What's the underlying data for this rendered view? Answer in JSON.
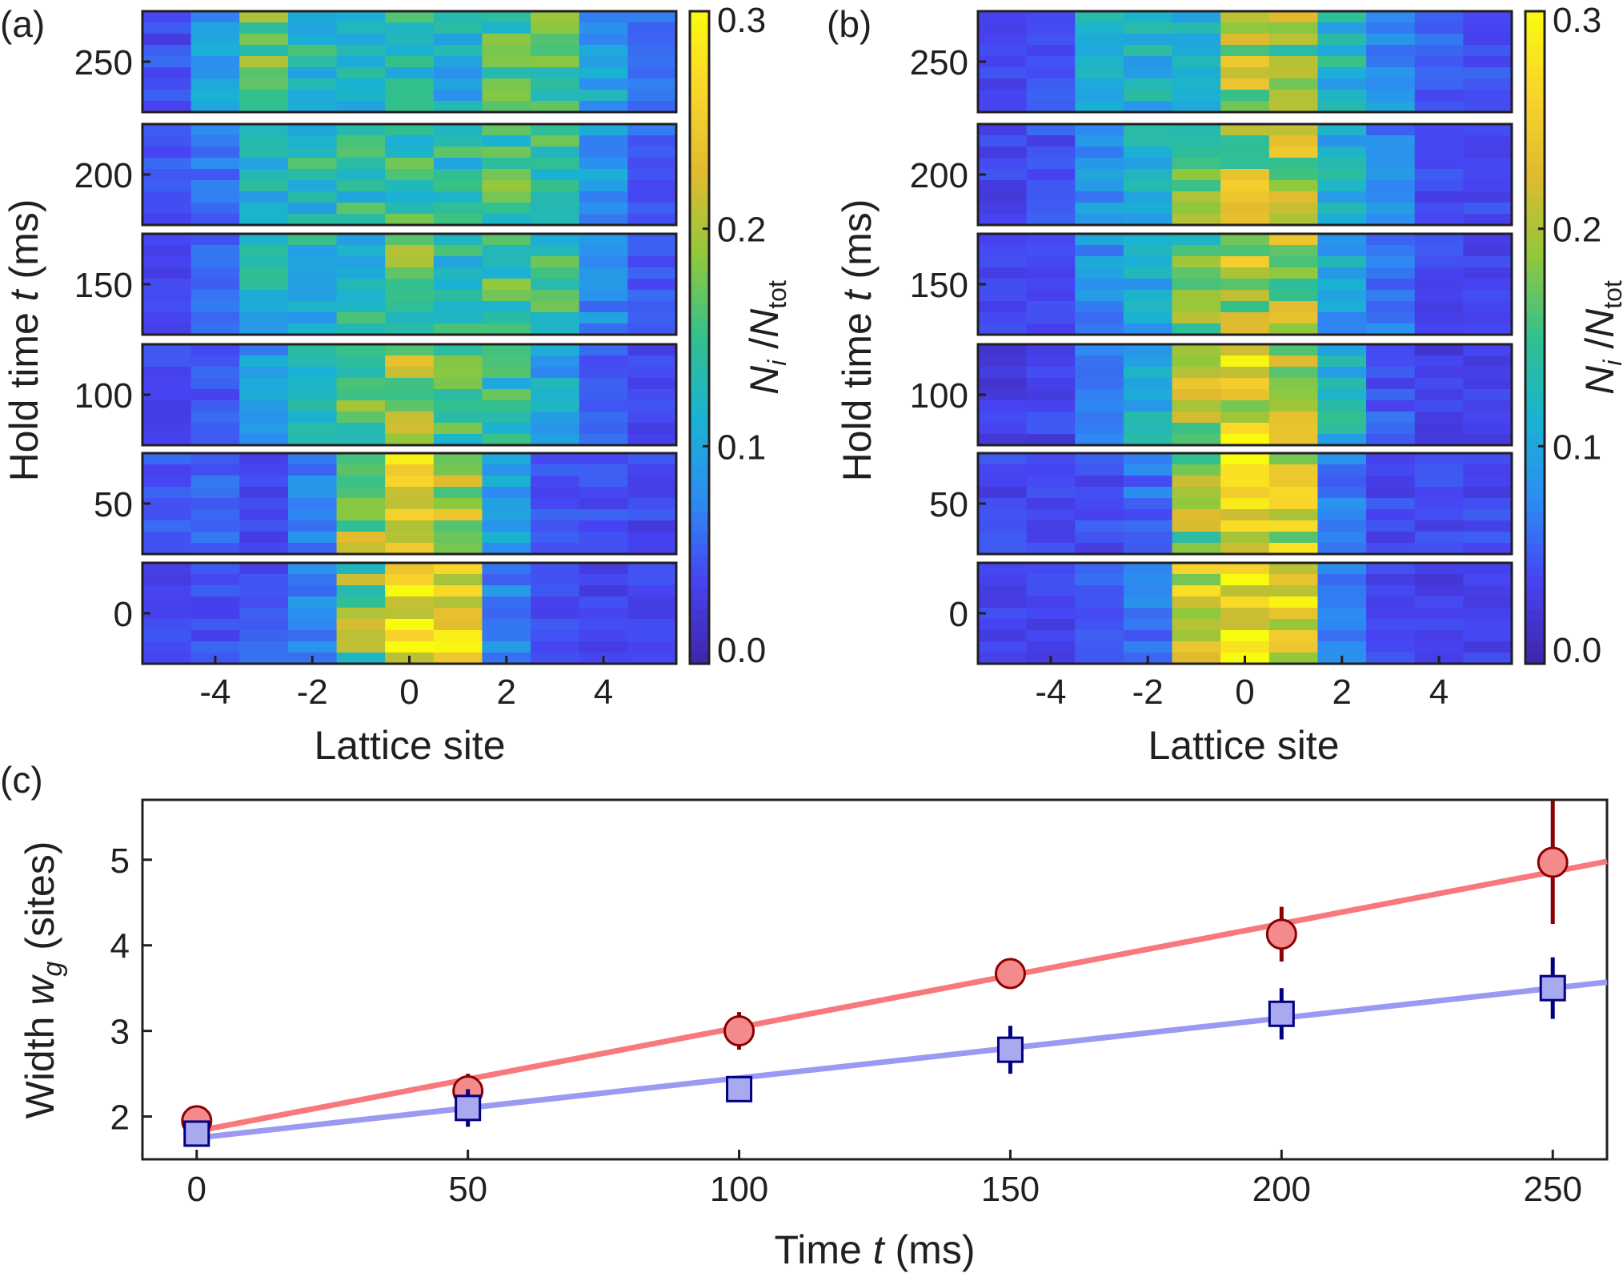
{
  "colors": {
    "frame": "#231f20",
    "red_line": "#f8797b",
    "red_marker_fill": "#f38b8c",
    "red_marker_edge": "#8b0000",
    "blue_line": "#9a9af2",
    "blue_marker_fill": "#a9a9f0",
    "blue_marker_edge": "#000080",
    "colormap": [
      "#3e26a8",
      "#4743f2",
      "#2d8cf2",
      "#1ab2d3",
      "#32c08d",
      "#90c83c",
      "#e0ba2f",
      "#f9d42b",
      "#f9fb0e"
    ]
  },
  "chart_data": [
    {
      "type": "heatmap",
      "panel_label": "(a)",
      "xlabel": "Lattice site",
      "ylabel_prefix": "Hold time",
      "ylabel_var": "t",
      "ylabel_unit": "(ms)",
      "x_ticks": [
        "-4",
        "-2",
        "0",
        "2",
        "4"
      ],
      "y_ticks": [
        "250",
        "200",
        "150",
        "100",
        "50",
        "0"
      ],
      "colorbar": {
        "label_num": "N",
        "label_num_sub": "i",
        "label_den": "N",
        "label_den_sub": "tot",
        "ticks": [
          "0.3",
          "0.2",
          "0.1",
          "0.0"
        ],
        "range": [
          0,
          0.3
        ]
      },
      "sites": [
        -5,
        -4,
        -3,
        -2,
        -1,
        0,
        1,
        2,
        3,
        4,
        5
      ],
      "hold_times": [
        250,
        200,
        150,
        100,
        50,
        0
      ],
      "profiles": [
        [
          0.045,
          0.085,
          0.16,
          0.13,
          0.11,
          0.14,
          0.11,
          0.15,
          0.16,
          0.095,
          0.055
        ],
        [
          0.045,
          0.065,
          0.12,
          0.13,
          0.14,
          0.15,
          0.13,
          0.15,
          0.14,
          0.085,
          0.05
        ],
        [
          0.04,
          0.05,
          0.12,
          0.12,
          0.13,
          0.16,
          0.13,
          0.15,
          0.14,
          0.075,
          0.045
        ],
        [
          0.035,
          0.045,
          0.09,
          0.14,
          0.16,
          0.19,
          0.16,
          0.14,
          0.1,
          0.05,
          0.04
        ],
        [
          0.045,
          0.055,
          0.04,
          0.07,
          0.19,
          0.24,
          0.19,
          0.1,
          0.045,
          0.045,
          0.04
        ],
        [
          0.035,
          0.04,
          0.05,
          0.07,
          0.17,
          0.25,
          0.24,
          0.07,
          0.04,
          0.035,
          0.035
        ]
      ]
    },
    {
      "type": "heatmap",
      "panel_label": "(b)",
      "xlabel": "Lattice site",
      "ylabel_prefix": "Hold time",
      "ylabel_var": "t",
      "ylabel_unit": "(ms)",
      "x_ticks": [
        "-4",
        "-2",
        "0",
        "2",
        "4"
      ],
      "y_ticks": [
        "250",
        "200",
        "150",
        "100",
        "50",
        "0"
      ],
      "colorbar": {
        "label_num": "N",
        "label_num_sub": "i",
        "label_den": "N",
        "label_den_sub": "tot",
        "ticks": [
          "0.3",
          "0.2",
          "0.1",
          "0.0"
        ],
        "range": [
          0,
          0.3
        ]
      },
      "sites": [
        -5,
        -4,
        -3,
        -2,
        -1,
        0,
        1,
        2,
        3,
        4,
        5
      ],
      "hold_times": [
        250,
        200,
        150,
        100,
        50,
        0
      ],
      "profiles": [
        [
          0.04,
          0.045,
          0.11,
          0.12,
          0.13,
          0.2,
          0.19,
          0.12,
          0.075,
          0.05,
          0.045
        ],
        [
          0.035,
          0.045,
          0.09,
          0.11,
          0.16,
          0.2,
          0.2,
          0.11,
          0.07,
          0.045,
          0.04
        ],
        [
          0.035,
          0.04,
          0.08,
          0.1,
          0.17,
          0.2,
          0.19,
          0.1,
          0.06,
          0.04,
          0.035
        ],
        [
          0.03,
          0.035,
          0.06,
          0.11,
          0.19,
          0.24,
          0.21,
          0.12,
          0.05,
          0.035,
          0.035
        ],
        [
          0.04,
          0.04,
          0.045,
          0.06,
          0.19,
          0.25,
          0.22,
          0.07,
          0.04,
          0.04,
          0.04
        ],
        [
          0.035,
          0.04,
          0.045,
          0.06,
          0.21,
          0.28,
          0.24,
          0.07,
          0.04,
          0.035,
          0.035
        ]
      ]
    },
    {
      "type": "scatter",
      "panel_label": "(c)",
      "xlabel_prefix": "Time",
      "xlabel_var": "t",
      "xlabel_unit": "(ms)",
      "ylabel_prefix": "Width",
      "ylabel_var": "w",
      "ylabel_sub": "g",
      "ylabel_unit": "(sites)",
      "xlim": [
        -10,
        260
      ],
      "ylim": [
        1.5,
        5.7
      ],
      "x_ticks": [
        "0",
        "50",
        "100",
        "150",
        "200",
        "250"
      ],
      "y_ticks": [
        "2",
        "3",
        "4",
        "5"
      ],
      "series": [
        {
          "name": "red",
          "x": [
            0,
            50,
            100,
            150,
            200,
            250
          ],
          "y": [
            1.95,
            2.3,
            3.0,
            3.67,
            4.13,
            4.97
          ],
          "err": [
            0.12,
            0.2,
            0.22,
            0.05,
            0.32,
            0.72
          ],
          "fit": {
            "x": [
              0,
              260
            ],
            "y": [
              1.83,
              4.98
            ]
          }
        },
        {
          "name": "blue",
          "x": [
            0,
            50,
            100,
            150,
            200,
            250
          ],
          "y": [
            1.8,
            2.1,
            2.32,
            2.78,
            3.2,
            3.5
          ],
          "err": [
            0.08,
            0.22,
            0.1,
            0.28,
            0.3,
            0.36
          ],
          "fit": {
            "x": [
              0,
              260
            ],
            "y": [
              1.75,
              3.57
            ]
          }
        }
      ]
    }
  ]
}
